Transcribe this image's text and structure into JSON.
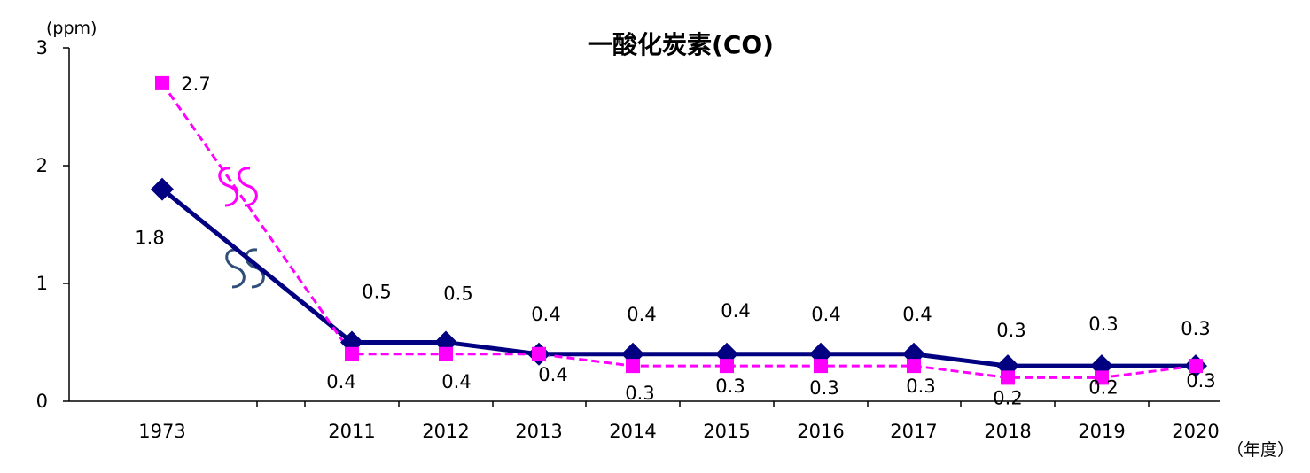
{
  "chart_data": {
    "type": "line",
    "title": "一酸化炭素(CO)",
    "y_unit_label": "(ppm)",
    "x_unit_label": "（年度）",
    "ylim": [
      0,
      3
    ],
    "yticks": [
      "0",
      "1",
      "2",
      "3"
    ],
    "categories": [
      "1973",
      "2011",
      "2012",
      "2013",
      "2014",
      "2015",
      "2016",
      "2017",
      "2018",
      "2019",
      "2020"
    ],
    "axis_break": "between 1973 and 2011",
    "grid": false,
    "series": [
      {
        "color": "#000080",
        "line_style": "solid",
        "marker": "diamond",
        "values": [
          1.8,
          0.5,
          0.5,
          0.4,
          0.4,
          0.4,
          0.4,
          0.4,
          0.3,
          0.3,
          0.3
        ],
        "labels": [
          "1.8",
          "0.5",
          "0.5",
          "0.4",
          "0.4",
          "0.4",
          "0.4",
          "0.4",
          "0.3",
          "0.3",
          "0.3"
        ]
      },
      {
        "color": "#ff00ff",
        "line_style": "dashed",
        "marker": "square",
        "values": [
          2.7,
          0.4,
          0.4,
          0.4,
          0.3,
          0.3,
          0.3,
          0.3,
          0.2,
          0.2,
          0.3
        ],
        "labels": [
          "2.7",
          "0.4",
          "0.4",
          "0.4",
          "0.3",
          "0.3",
          "0.3",
          "0.3",
          "0.2",
          "0.2",
          "0.3"
        ]
      }
    ]
  }
}
